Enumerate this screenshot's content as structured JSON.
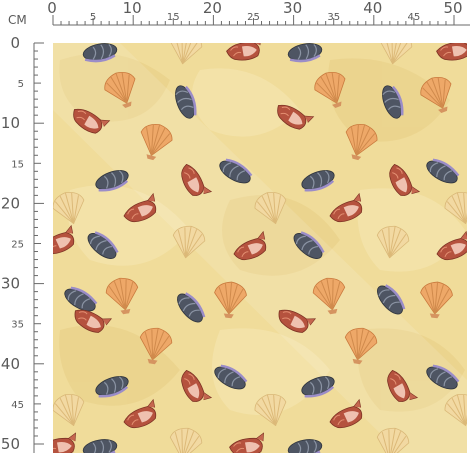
{
  "ruler": {
    "unit": "CM",
    "major_labels": [
      "0",
      "10",
      "20",
      "30",
      "40",
      "50"
    ],
    "minor_labels": [
      "5",
      "15",
      "25",
      "35",
      "45"
    ],
    "max": 50
  },
  "pattern": {
    "background_color": "#f0dc9a",
    "motifs": [
      "scallop-shell",
      "mussel-shell",
      "conch-shell"
    ],
    "colors": {
      "sand_light": "#f3e2a6",
      "sand_mid": "#e8cf86",
      "scallop_orange": "#eea868",
      "scallop_cream": "#f2d9a2",
      "mussel_dark": "#4e5563",
      "mussel_purple": "#9b8dc8",
      "conch_red": "#b5523e",
      "conch_pink": "#efc1b0"
    }
  }
}
